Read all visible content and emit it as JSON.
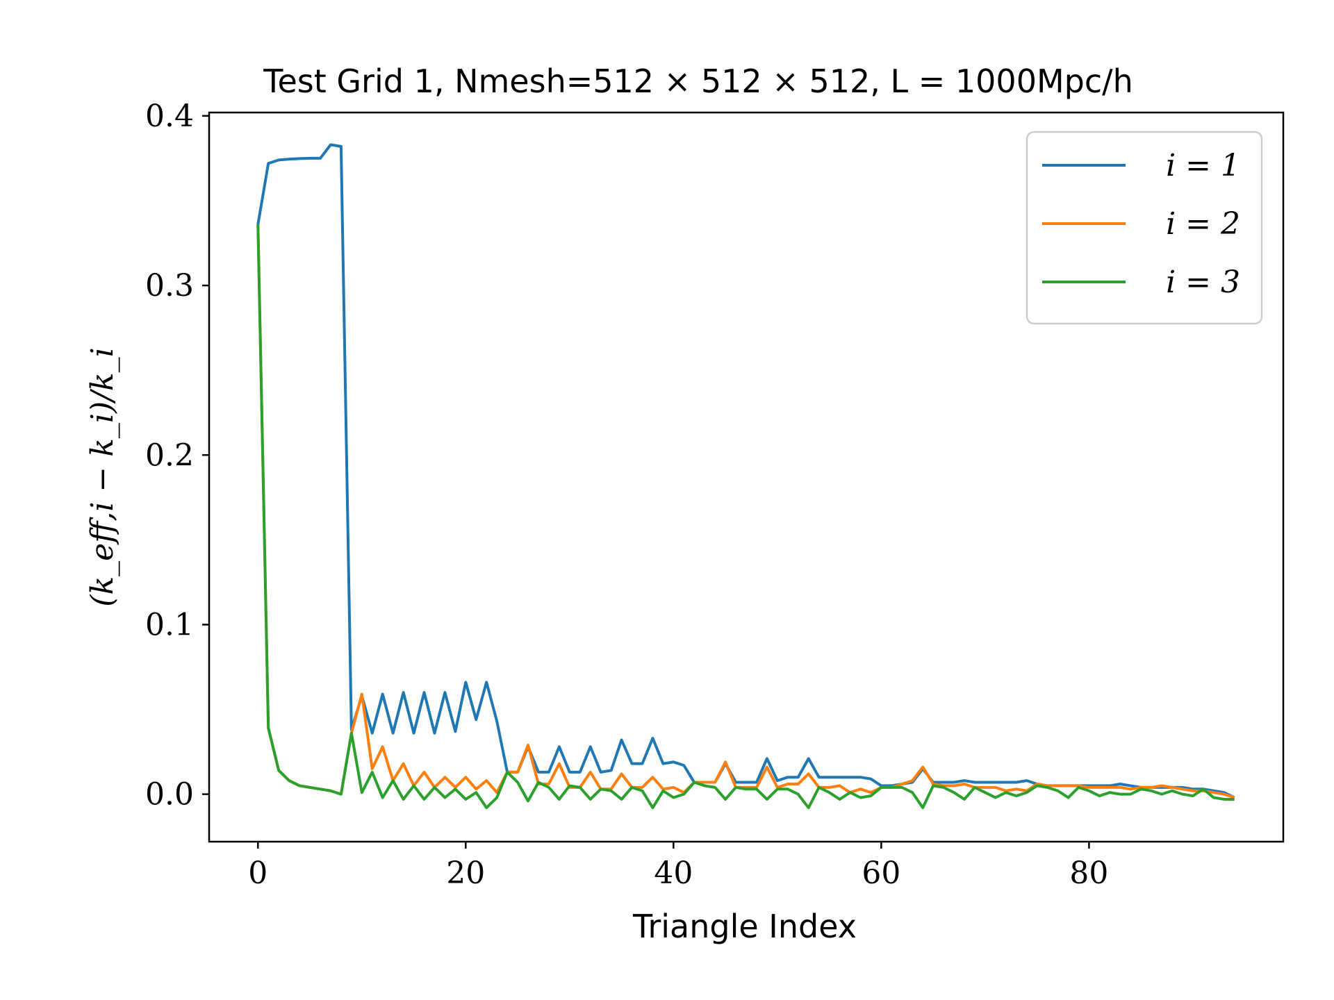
{
  "chart_data": {
    "type": "line",
    "title": "Test Grid 1, Nmesh=512 × 512 × 512, L = 1000Mpc/h",
    "xlabel": "Triangle Index",
    "ylabel": "(k_eff,i − k_i)/k_i",
    "xlim": [
      -4.7,
      98.7
    ],
    "ylim": [
      -0.028,
      0.402
    ],
    "xticks": [
      0,
      20,
      40,
      60,
      80
    ],
    "xtick_labels": [
      "0",
      "20",
      "40",
      "60",
      "80"
    ],
    "yticks": [
      0.0,
      0.1,
      0.2,
      0.3,
      0.4
    ],
    "ytick_labels": [
      "0.0",
      "0.1",
      "0.2",
      "0.3",
      "0.4"
    ],
    "grid": false,
    "legend_position": "top-right",
    "series": [
      {
        "name": "i = 1",
        "color": "#1f77b4",
        "values": [
          0.336,
          0.372,
          0.374,
          0.3745,
          0.3748,
          0.375,
          0.375,
          0.383,
          0.382,
          0.038,
          0.058,
          0.036,
          0.059,
          0.036,
          0.06,
          0.036,
          0.06,
          0.036,
          0.06,
          0.037,
          0.066,
          0.044,
          0.066,
          0.043,
          0.013,
          0.013,
          0.028,
          0.013,
          0.013,
          0.028,
          0.013,
          0.013,
          0.028,
          0.013,
          0.014,
          0.032,
          0.018,
          0.018,
          0.033,
          0.018,
          0.019,
          0.017,
          0.007,
          0.007,
          0.007,
          0.018,
          0.007,
          0.007,
          0.007,
          0.021,
          0.008,
          0.01,
          0.01,
          0.021,
          0.01,
          0.01,
          0.01,
          0.01,
          0.01,
          0.009,
          0.005,
          0.005,
          0.006,
          0.007,
          0.015,
          0.007,
          0.007,
          0.007,
          0.008,
          0.007,
          0.007,
          0.007,
          0.007,
          0.007,
          0.008,
          0.006,
          0.005,
          0.005,
          0.005,
          0.005,
          0.005,
          0.005,
          0.005,
          0.006,
          0.005,
          0.004,
          0.004,
          0.004,
          0.004,
          0.004,
          0.003,
          0.003,
          0.002,
          0.001,
          -0.002
        ]
      },
      {
        "name": "i = 2",
        "color": "#ff7f0e",
        "values": [
          0.336,
          0.039,
          0.014,
          0.008,
          0.005,
          0.004,
          0.003,
          0.002,
          0.0,
          0.036,
          0.059,
          0.015,
          0.028,
          0.008,
          0.018,
          0.005,
          0.013,
          0.004,
          0.01,
          0.004,
          0.01,
          0.003,
          0.008,
          0.001,
          0.013,
          0.013,
          0.029,
          0.006,
          0.006,
          0.018,
          0.004,
          0.004,
          0.013,
          0.003,
          0.003,
          0.012,
          0.004,
          0.004,
          0.01,
          0.003,
          0.004,
          0.001,
          0.007,
          0.007,
          0.007,
          0.019,
          0.004,
          0.004,
          0.004,
          0.016,
          0.004,
          0.006,
          0.006,
          0.012,
          0.004,
          0.004,
          0.005,
          0.001,
          0.003,
          0.001,
          0.004,
          0.004,
          0.006,
          0.008,
          0.016,
          0.006,
          0.005,
          0.005,
          0.006,
          0.004,
          0.004,
          0.004,
          0.002,
          0.003,
          0.002,
          0.006,
          0.005,
          0.005,
          0.005,
          0.005,
          0.004,
          0.004,
          0.004,
          0.004,
          0.003,
          0.004,
          0.004,
          0.005,
          0.004,
          0.003,
          0.002,
          0.002,
          0.001,
          0.0,
          -0.002
        ]
      },
      {
        "name": "i = 3",
        "color": "#2ca02c",
        "values": [
          0.336,
          0.039,
          0.014,
          0.008,
          0.005,
          0.004,
          0.003,
          0.002,
          0.0,
          0.036,
          0.001,
          0.013,
          -0.002,
          0.008,
          -0.003,
          0.005,
          -0.003,
          0.004,
          -0.002,
          0.003,
          -0.003,
          0.001,
          -0.008,
          -0.002,
          0.013,
          0.007,
          -0.004,
          0.007,
          0.004,
          -0.003,
          0.005,
          0.004,
          -0.003,
          0.003,
          0.002,
          -0.003,
          0.004,
          0.002,
          -0.008,
          0.002,
          -0.002,
          0.0,
          0.007,
          0.005,
          0.004,
          -0.003,
          0.004,
          0.003,
          0.003,
          -0.003,
          0.003,
          0.003,
          0.0,
          -0.008,
          0.004,
          0.001,
          -0.003,
          0.001,
          -0.002,
          -0.001,
          0.004,
          0.004,
          0.004,
          0.001,
          -0.008,
          0.005,
          0.004,
          0.001,
          -0.003,
          0.004,
          0.001,
          -0.002,
          0.001,
          -0.001,
          0.001,
          0.005,
          0.004,
          0.002,
          -0.002,
          0.004,
          0.002,
          -0.001,
          0.001,
          0.0,
          0.0,
          0.003,
          0.002,
          0.0,
          0.002,
          0.0,
          -0.001,
          0.003,
          -0.002,
          -0.003,
          -0.003
        ]
      }
    ]
  }
}
